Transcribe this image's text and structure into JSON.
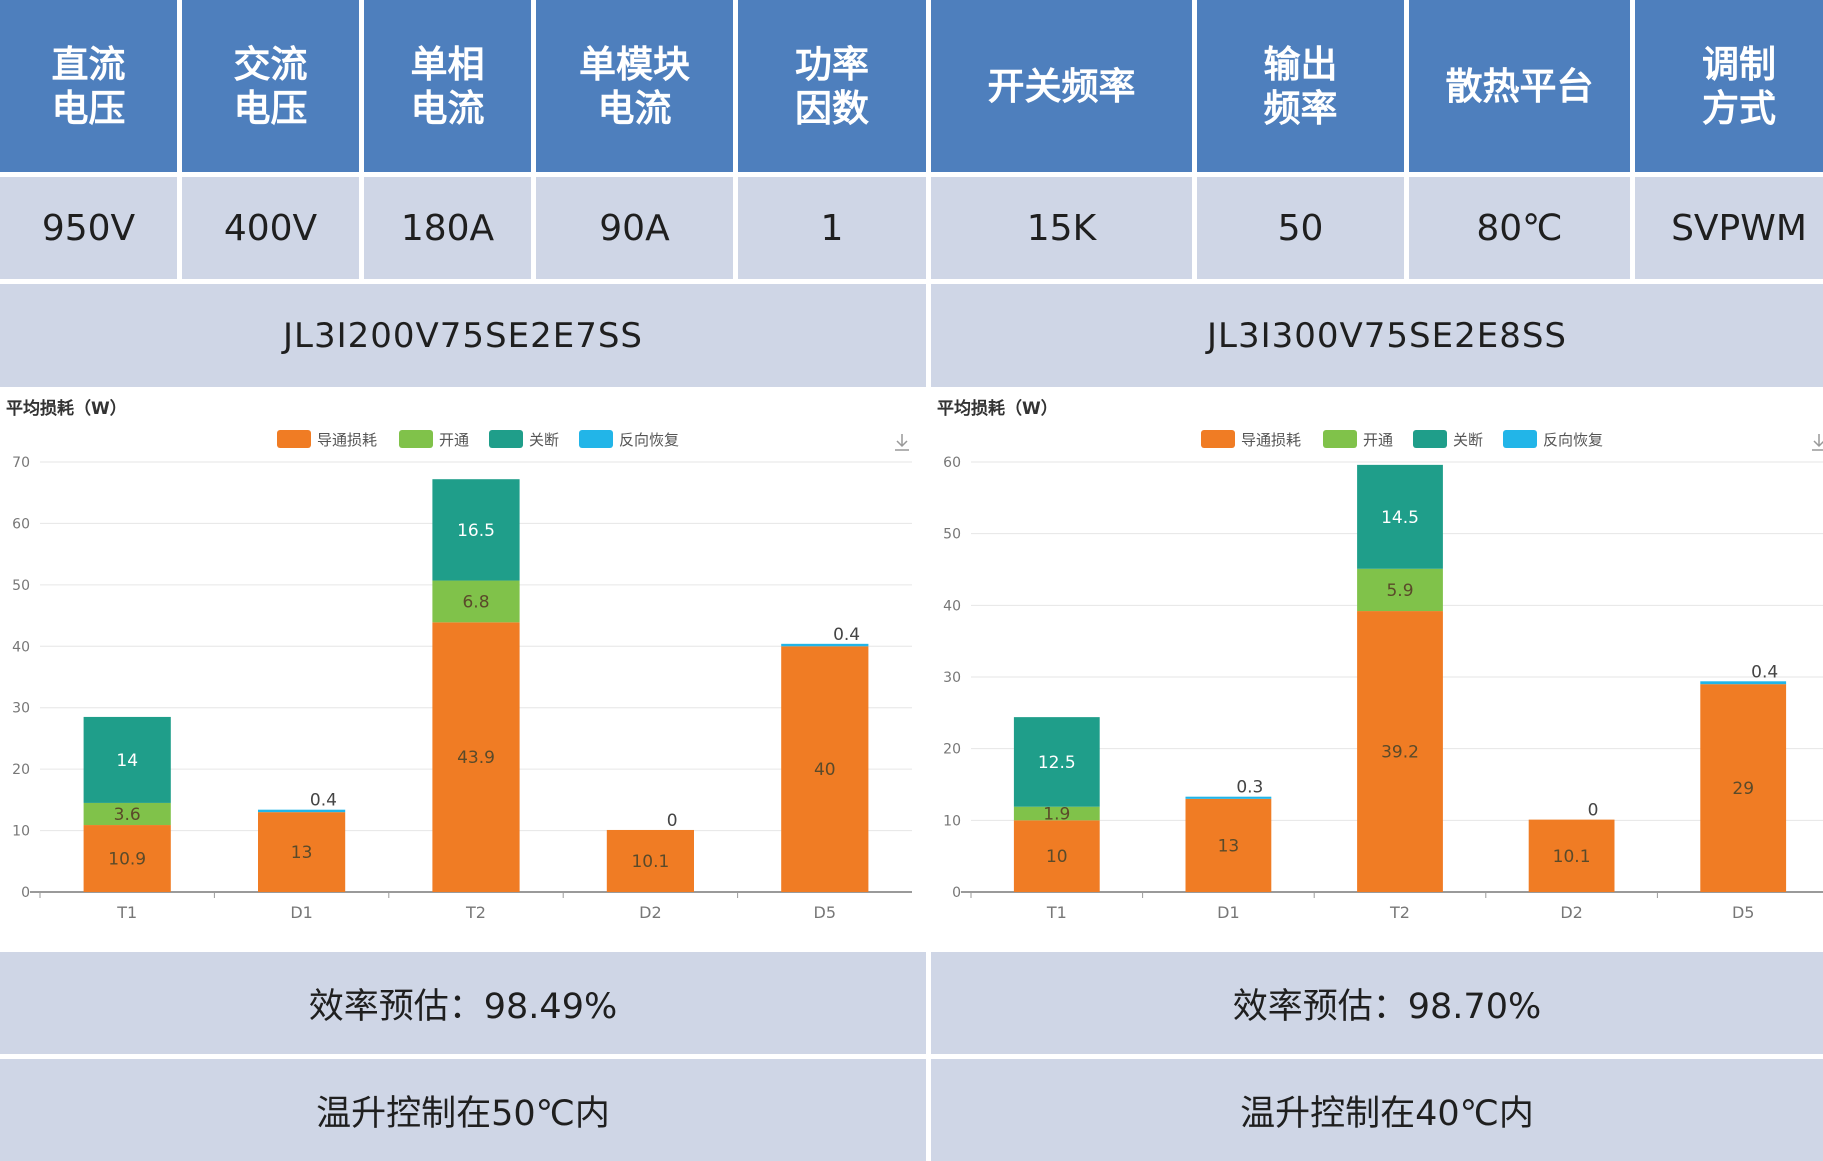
{
  "headers": [
    {
      "line1": "直流",
      "line2": "电压"
    },
    {
      "line1": "交流",
      "line2": "电压"
    },
    {
      "line1": "单相",
      "line2": "电流"
    },
    {
      "line1": "单模块",
      "line2": "电流"
    },
    {
      "line1": "功率",
      "line2": "因数"
    },
    {
      "line1": "开关频率",
      "line2": ""
    },
    {
      "line1": "输出",
      "line2": "频率"
    },
    {
      "line1": "散热平台",
      "line2": ""
    },
    {
      "line1": "调制",
      "line2": "方式"
    }
  ],
  "values": [
    "950V",
    "400V",
    "180A",
    "90A",
    "1",
    "15K",
    "50",
    "80℃",
    "SVPWM"
  ],
  "models": {
    "left": "JL3I200V75SE2E7SS",
    "right": "JL3I300V75SE2E8SS"
  },
  "efficiency": {
    "left": "效率预估：98.49%",
    "right": "效率预估：98.70%"
  },
  "temperature": {
    "left": "温升控制在50℃内",
    "right": "温升控制在40℃内"
  },
  "colors": {
    "header_bg": "#4e7fbd",
    "cell_bg": "#cfd6e6",
    "conduction": "#f07c24",
    "turn_on": "#80c24a",
    "turn_off": "#1f9e8a",
    "reverse_recovery": "#22b5e8"
  },
  "chart_data": [
    {
      "type": "bar",
      "stacked": true,
      "ylabel": "平均损耗（W）",
      "ylim": [
        0,
        70
      ],
      "yticks": [
        0,
        10,
        20,
        30,
        40,
        50,
        60,
        70
      ],
      "categories": [
        "T1",
        "D1",
        "T2",
        "D2",
        "D5"
      ],
      "legend": [
        "导通损耗",
        "开通",
        "关断",
        "反向恢复"
      ],
      "legend_position": "top-center",
      "series": [
        {
          "name": "导通损耗",
          "values": [
            10.9,
            13,
            43.9,
            10.1,
            40
          ]
        },
        {
          "name": "开通",
          "values": [
            3.6,
            null,
            6.8,
            null,
            null
          ]
        },
        {
          "name": "关断",
          "values": [
            14,
            null,
            16.5,
            null,
            null
          ]
        },
        {
          "name": "反向恢复",
          "values": [
            null,
            0.4,
            null,
            0,
            0.4
          ]
        }
      ]
    },
    {
      "type": "bar",
      "stacked": true,
      "ylabel": "平均损耗（W）",
      "ylim": [
        0,
        60
      ],
      "yticks": [
        0,
        10,
        20,
        30,
        40,
        50,
        60
      ],
      "categories": [
        "T1",
        "D1",
        "T2",
        "D2",
        "D5"
      ],
      "legend": [
        "导通损耗",
        "开通",
        "关断",
        "反向恢复"
      ],
      "legend_position": "top-center",
      "series": [
        {
          "name": "导通损耗",
          "values": [
            10,
            13,
            39.2,
            10.1,
            29
          ]
        },
        {
          "name": "开通",
          "values": [
            1.9,
            null,
            5.9,
            null,
            null
          ]
        },
        {
          "name": "关断",
          "values": [
            12.5,
            null,
            14.5,
            null,
            null
          ]
        },
        {
          "name": "反向恢复",
          "values": [
            null,
            0.3,
            null,
            0,
            0.4
          ]
        }
      ]
    }
  ]
}
